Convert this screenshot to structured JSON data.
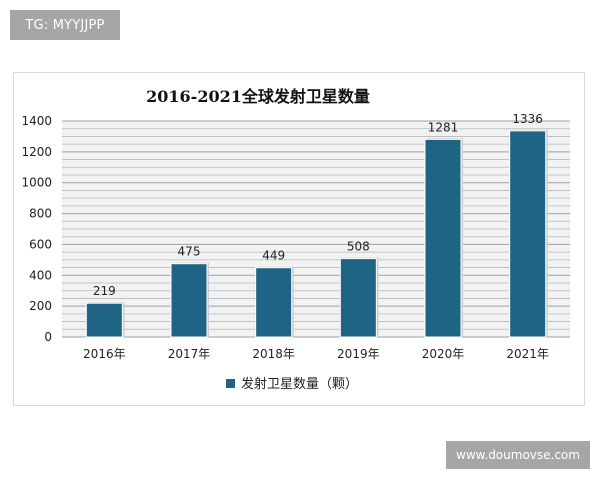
{
  "watermark_top": "TG: MYYJJPP",
  "watermark_bottom": "www.doumovse.com",
  "chart_data": {
    "type": "bar",
    "title": "2016-2021全球发射卫星数量",
    "categories": [
      "2016年",
      "2017年",
      "2018年",
      "2019年",
      "2020年",
      "2021年"
    ],
    "series": [
      {
        "name": "发射卫星数量（颗）",
        "values": [
          219,
          475,
          449,
          508,
          1281,
          1336
        ]
      }
    ],
    "ylim": [
      0,
      1400
    ],
    "yticks": [
      0,
      200,
      400,
      600,
      800,
      1000,
      1200,
      1400
    ],
    "grid": true,
    "legend_position": "bottom",
    "bar_color": "#1f6484",
    "plot_background": "#f2f2f2",
    "grid_color": "#b4b8bd"
  }
}
